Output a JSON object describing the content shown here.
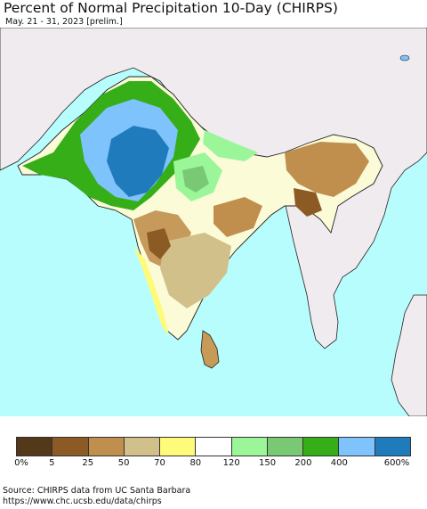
{
  "title": "Percent of Normal Precipitation 10-Day (CHIRPS)",
  "subtitle": "May. 21 - 31, 2023 [prelim.]",
  "legend": {
    "colors": [
      "#53381a",
      "#8c5a24",
      "#c08f4e",
      "#d2c08a",
      "#fffb7a",
      "#ffffff",
      "#9bf69a",
      "#78c874",
      "#36ae18",
      "#7fc3fc",
      "#1f7bbb"
    ],
    "labels": [
      "0%",
      "5",
      "25",
      "50",
      "70",
      "80",
      "120",
      "150",
      "200",
      "400",
      "600%"
    ]
  },
  "source": {
    "line1": "Source: CHIRPS data from UC Santa Barbara",
    "line2": "https://www.chc.ucsb.edu/data/chirps"
  },
  "map_colors": {
    "ocean": "#b8fdfd",
    "land_outside": "#efebef",
    "border": "#222222"
  }
}
